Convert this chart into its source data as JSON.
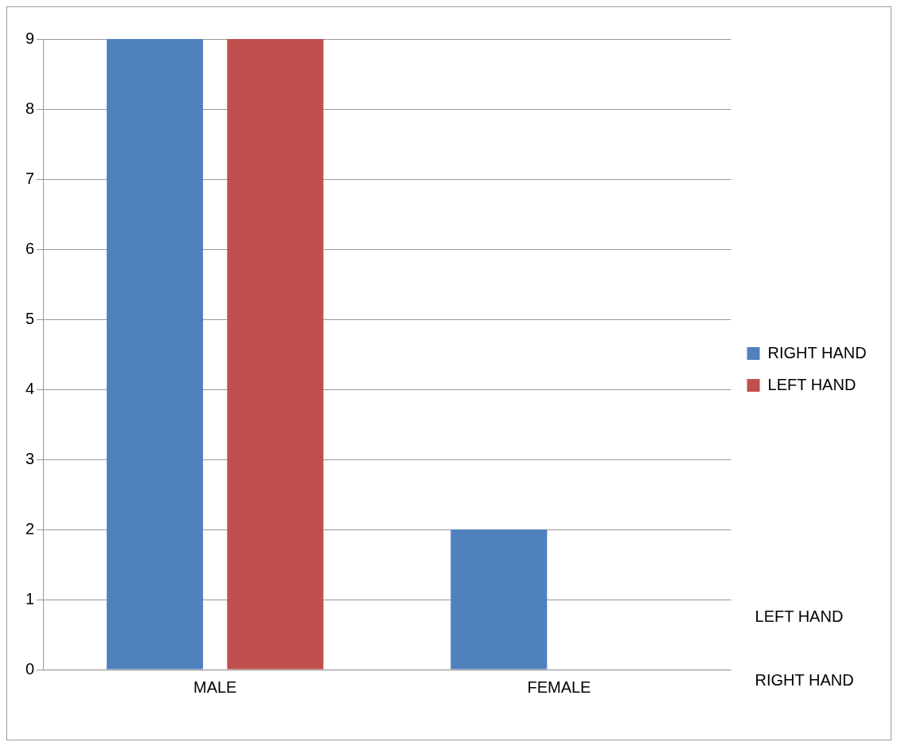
{
  "chart_data": {
    "type": "bar",
    "categories": [
      "MALE",
      "FEMALE"
    ],
    "series": [
      {
        "name": "RIGHT HAND",
        "color": "#4f81bd",
        "values": [
          9,
          2
        ]
      },
      {
        "name": "LEFT HAND",
        "color": "#c0504d",
        "values": [
          9,
          0
        ]
      }
    ],
    "ylim": [
      0,
      9
    ],
    "yticks": [
      0,
      1,
      2,
      3,
      4,
      5,
      6,
      7,
      8,
      9
    ],
    "grid": "y",
    "legend": "right",
    "annotations": [
      "LEFT HAND",
      "RIGHT HAND"
    ]
  }
}
